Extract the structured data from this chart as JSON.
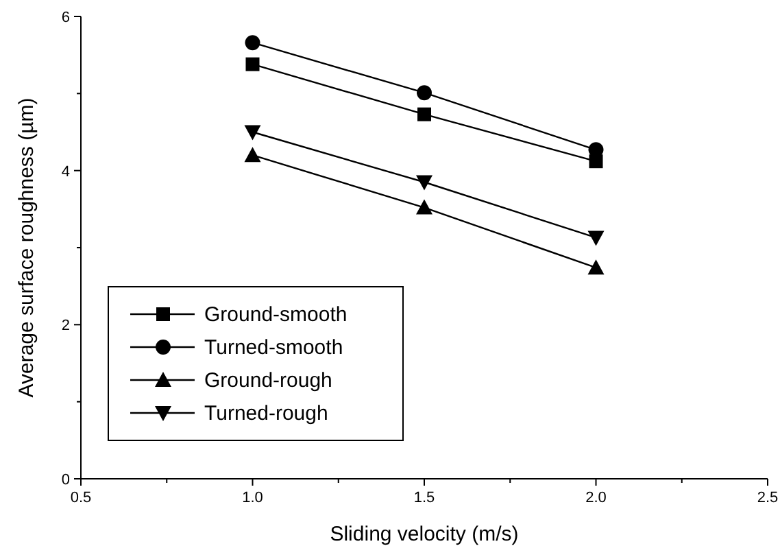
{
  "chart_data": {
    "type": "line",
    "xlabel": "Sliding velocity (m/s)",
    "ylabel": "Average surface roughness (µm)",
    "x": [
      1.0,
      1.5,
      2.0
    ],
    "xlim": [
      0.5,
      2.5
    ],
    "xticks": [
      {
        "value": 0.5,
        "label": "0.5"
      },
      {
        "value": 0.75,
        "label": null
      },
      {
        "value": 1,
        "label": "1.0"
      },
      {
        "value": 1.25,
        "label": null
      },
      {
        "value": 1.5,
        "label": "1.5"
      },
      {
        "value": 1.75,
        "label": null
      },
      {
        "value": 2,
        "label": "2.0"
      },
      {
        "value": 2.25,
        "label": null
      },
      {
        "value": 2.5,
        "label": "2.5"
      }
    ],
    "ylim": [
      0,
      6
    ],
    "yticks": [
      0,
      {
        "value": 1,
        "label": null
      },
      2,
      {
        "value": 3,
        "label": null
      },
      4,
      {
        "value": 5,
        "label": null
      },
      6
    ],
    "grid": false,
    "legend": "bottom left",
    "line_style": "solid",
    "series": [
      {
        "name": "Ground-smooth",
        "color": "#000000",
        "marker": "square",
        "values": [
          5.38,
          4.73,
          4.12
        ]
      },
      {
        "name": "Turned-smooth",
        "color": "#000000",
        "marker": "circle",
        "values": [
          5.66,
          5.01,
          4.27
        ]
      },
      {
        "name": "Ground-rough",
        "color": "#000000",
        "marker": "triangle",
        "values": [
          4.2,
          3.52,
          2.74
        ]
      },
      {
        "name": "Turned-rough",
        "color": "#000000",
        "marker": "triangle-down",
        "values": [
          4.5,
          3.85,
          3.13
        ]
      }
    ]
  }
}
